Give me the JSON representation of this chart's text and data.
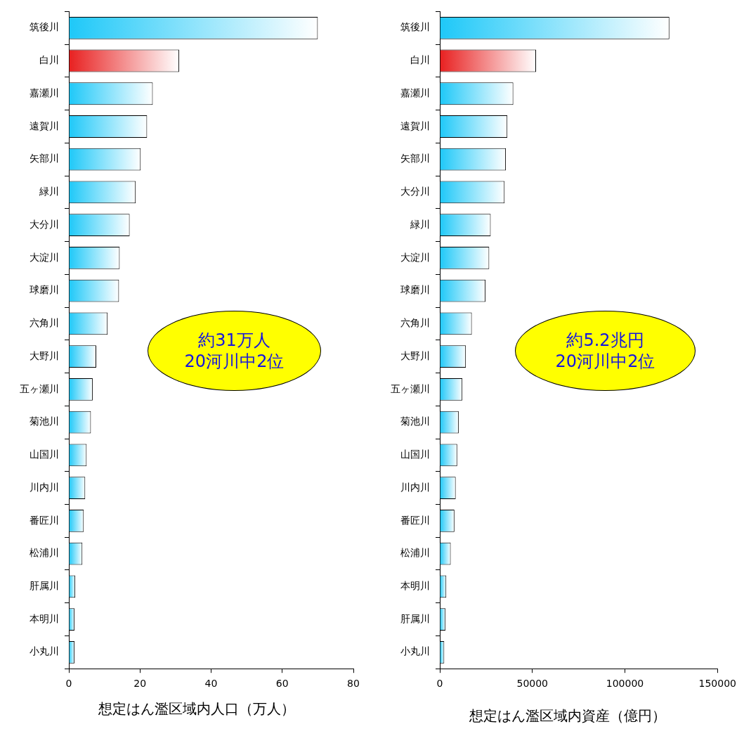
{
  "chart_data": [
    {
      "type": "bar",
      "orientation": "horizontal",
      "categories": [
        "筑後川",
        "白川",
        "嘉瀬川",
        "遠賀川",
        "矢部川",
        "緑川",
        "大分川",
        "大淀川",
        "球磨川",
        "六角川",
        "大野川",
        "五ヶ瀬川",
        "菊池川",
        "山国川",
        "川内川",
        "番匠川",
        "松浦川",
        "肝属川",
        "本明川",
        "小丸川"
      ],
      "values": [
        70,
        31,
        23.6,
        22,
        20.2,
        18.8,
        17.1,
        14.3,
        14.1,
        10.9,
        7.7,
        6.7,
        6.2,
        5,
        4.6,
        4.2,
        3.8,
        1.8,
        1.6,
        1.6
      ],
      "colors": [
        "#1ec8f8",
        "#e82020",
        "#1ec8f8",
        "#1ec8f8",
        "#1ec8f8",
        "#1ec8f8",
        "#1ec8f8",
        "#1ec8f8",
        "#1ec8f8",
        "#1ec8f8",
        "#1ec8f8",
        "#1ec8f8",
        "#1ec8f8",
        "#1ec8f8",
        "#1ec8f8",
        "#1ec8f8",
        "#1ec8f8",
        "#1ec8f8",
        "#1ec8f8",
        "#1ec8f8"
      ],
      "xlim": [
        0,
        80
      ],
      "xticks": [
        0,
        20,
        40,
        60,
        80
      ],
      "xlabel": "想定はん濫区域内人口（万人）",
      "grid": false,
      "legend": false,
      "annotations": [
        "約31万人\n20河川中2位"
      ]
    },
    {
      "type": "bar",
      "orientation": "horizontal",
      "categories": [
        "筑後川",
        "白川",
        "嘉瀬川",
        "遠賀川",
        "矢部川",
        "大分川",
        "緑川",
        "大淀川",
        "球磨川",
        "六角川",
        "大野川",
        "五ヶ瀬川",
        "菊池川",
        "山国川",
        "川内川",
        "番匠川",
        "松浦川",
        "本明川",
        "肝属川",
        "小丸川"
      ],
      "values": [
        124000,
        52000,
        39700,
        36500,
        35700,
        35000,
        27500,
        26700,
        24700,
        17300,
        14100,
        12200,
        10200,
        9400,
        8600,
        7900,
        5900,
        3500,
        3100,
        2400
      ],
      "colors": [
        "#1ec8f8",
        "#e82020",
        "#1ec8f8",
        "#1ec8f8",
        "#1ec8f8",
        "#1ec8f8",
        "#1ec8f8",
        "#1ec8f8",
        "#1ec8f8",
        "#1ec8f8",
        "#1ec8f8",
        "#1ec8f8",
        "#1ec8f8",
        "#1ec8f8",
        "#1ec8f8",
        "#1ec8f8",
        "#1ec8f8",
        "#1ec8f8",
        "#1ec8f8",
        "#1ec8f8"
      ],
      "xlim": [
        0,
        150000
      ],
      "xticks": [
        0,
        50000,
        100000,
        150000
      ],
      "xlabel": "想定はん濫区域内資産（億円）",
      "grid": false,
      "legend": false,
      "annotations": [
        "約5.2兆円\n20河川中2位"
      ]
    }
  ]
}
